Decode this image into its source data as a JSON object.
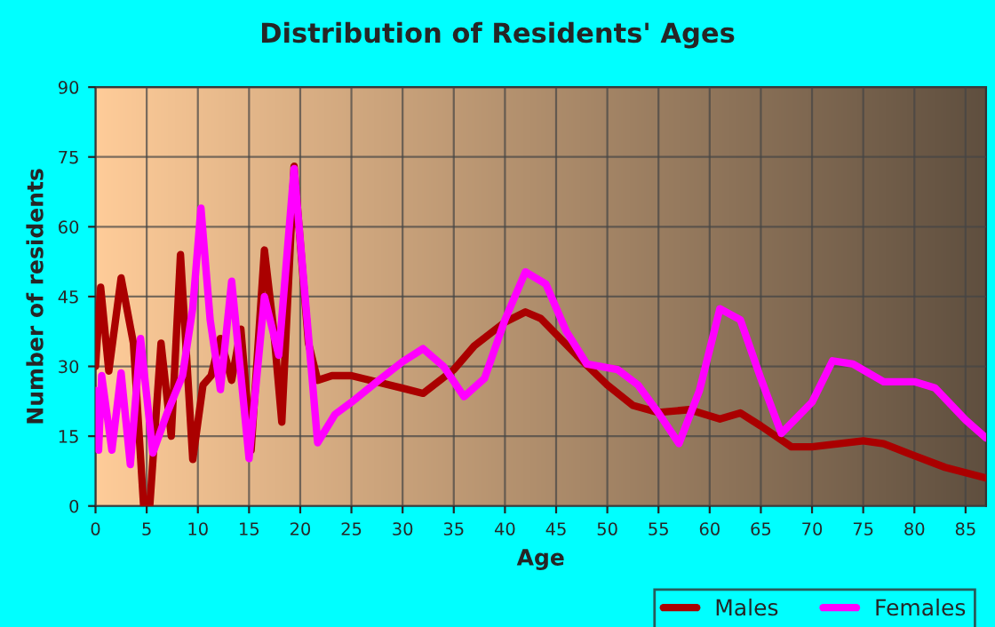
{
  "chart_data": {
    "type": "line",
    "title": "Distribution of Residents' Ages",
    "xlabel": "Age",
    "ylabel": "Number of residents",
    "xlim": [
      0,
      87
    ],
    "xticks": [
      0,
      5,
      10,
      15,
      20,
      25,
      30,
      35,
      40,
      45,
      50,
      55,
      60,
      65,
      70,
      75,
      80,
      85
    ],
    "ylim": [
      0,
      90
    ],
    "yticks": [
      0,
      15,
      30,
      45,
      60,
      75,
      90
    ],
    "grid": true,
    "legend": "bottom right",
    "marker": "none",
    "line_style": "solid",
    "series": [
      {
        "name": "Males",
        "color": "#aa0000",
        "x": [
          0,
          0.5,
          1.3,
          2.5,
          3.7,
          4.7,
          5.3,
          6.4,
          7.4,
          8.3,
          9.5,
          10.5,
          11.3,
          12.2,
          13.3,
          14.2,
          15.2,
          16.5,
          17.4,
          18.2,
          19.4,
          20.8,
          21.7,
          23.1,
          25,
          30,
          32,
          35,
          37,
          40,
          42,
          43.5,
          47,
          50,
          52.5,
          55,
          58,
          61,
          63,
          65,
          68,
          70,
          75,
          77,
          80,
          83,
          87
        ],
        "values": [
          30,
          47,
          29,
          49,
          35,
          0,
          0,
          35,
          15,
          54,
          10,
          26,
          28,
          36,
          27,
          38,
          12,
          55,
          38,
          18,
          73,
          35,
          27,
          28,
          28,
          25.3,
          24.2,
          29.3,
          34.4,
          39.5,
          41.7,
          40.3,
          32.4,
          26,
          21.6,
          20.1,
          20.7,
          18.7,
          20,
          17.2,
          12.7,
          12.7,
          14,
          13.4,
          10.8,
          8.3,
          6
        ]
      },
      {
        "name": "Females",
        "color": "#ff00ff",
        "x": [
          0,
          0.3,
          0.6,
          1.6,
          2.5,
          3.4,
          4.4,
          5.6,
          7.0,
          8.5,
          9.5,
          10.3,
          11.2,
          12.2,
          13.3,
          15.0,
          16.5,
          17.9,
          19.4,
          21.7,
          23.4,
          25,
          27.5,
          30,
          32,
          34,
          36,
          38,
          40,
          42,
          44,
          46,
          48,
          51,
          53,
          55,
          57,
          59,
          61,
          63,
          65,
          67,
          70,
          72,
          74,
          77,
          80,
          82,
          85,
          87
        ],
        "values": [
          24.8,
          12,
          28,
          12,
          28.6,
          8.9,
          36,
          11.4,
          20,
          28,
          42.6,
          64,
          40,
          25,
          48.3,
          10.2,
          45,
          32.4,
          72.5,
          13.6,
          19.7,
          22.3,
          26.7,
          31,
          33.8,
          30,
          23.5,
          27.4,
          40,
          50.3,
          47.7,
          37.5,
          30.5,
          29.3,
          26,
          20,
          13.4,
          24.8,
          42.4,
          40,
          27.4,
          15.6,
          22.3,
          31.2,
          30.5,
          26.7,
          26.7,
          25.4,
          18.5,
          14.6
        ]
      }
    ]
  }
}
